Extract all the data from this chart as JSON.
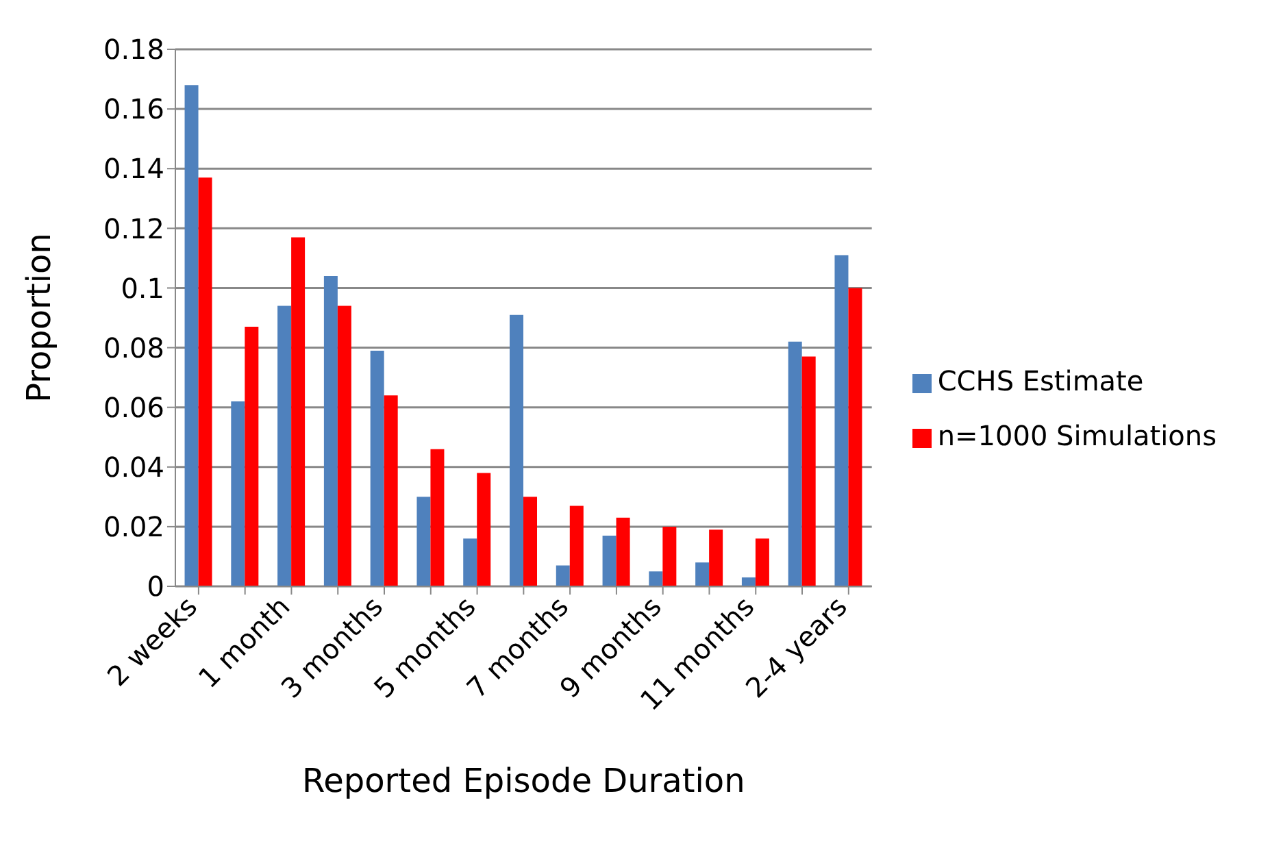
{
  "chart_data": {
    "type": "bar",
    "xlabel": "Reported Episode Duration",
    "ylabel": "Proportion",
    "categories": [
      "2 weeks",
      null,
      "1 month",
      null,
      "3 months",
      null,
      "5 months",
      null,
      "7 months",
      null,
      "9 months",
      null,
      "11 months",
      null,
      "2-4 years"
    ],
    "series": [
      {
        "name": "CCHS Estimate",
        "color": "#4f81bd",
        "values": [
          0.168,
          0.062,
          0.094,
          0.104,
          0.079,
          0.03,
          0.016,
          0.091,
          0.007,
          0.017,
          0.005,
          0.008,
          0.003,
          0.082,
          0.111
        ]
      },
      {
        "name": "n=1000 Simulations",
        "color": "#ff0000",
        "values": [
          0.137,
          0.087,
          0.117,
          0.094,
          0.064,
          0.046,
          0.038,
          0.03,
          0.027,
          0.023,
          0.02,
          0.019,
          0.016,
          0.077,
          0.1
        ]
      }
    ],
    "ylim": [
      0,
      0.18
    ],
    "yticks": [
      0,
      0.02,
      0.04,
      0.06,
      0.08,
      0.1,
      0.12,
      0.14,
      0.16,
      0.18
    ],
    "grid": "y",
    "legend": "right"
  }
}
